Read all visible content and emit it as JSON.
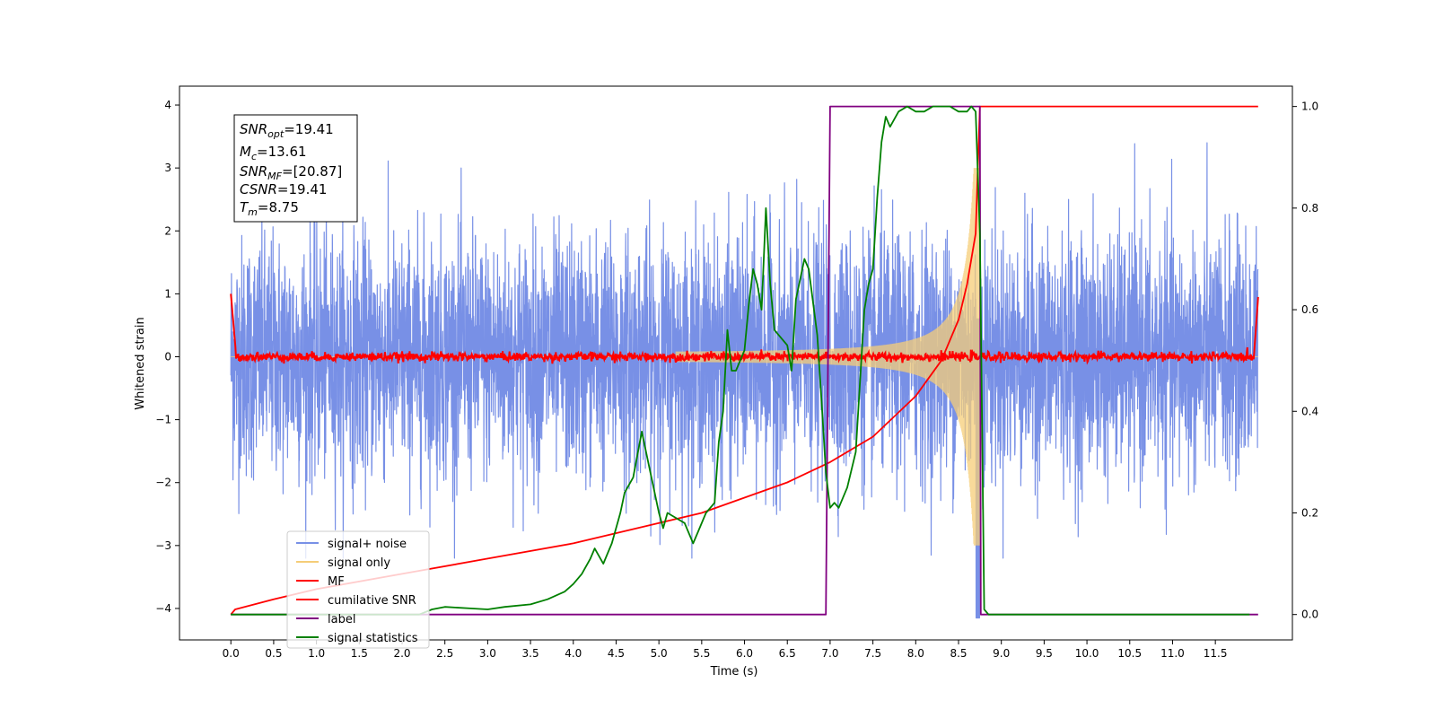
{
  "chart_data": {
    "type": "line",
    "xlabel": "Time (s)",
    "ylabel": "Whitened strain",
    "xlim": [
      -0.6,
      12.4
    ],
    "ylim": [
      -4.5,
      4.3
    ],
    "y2lim": [
      -0.05,
      1.04
    ],
    "grid": false,
    "legend_position": "lower-left",
    "x_ticks": [
      "0.0",
      "0.5",
      "1.0",
      "1.5",
      "2.0",
      "2.5",
      "3.0",
      "3.5",
      "4.0",
      "4.5",
      "5.0",
      "5.5",
      "6.0",
      "6.5",
      "7.0",
      "7.5",
      "8.0",
      "8.5",
      "9.0",
      "9.5",
      "10.0",
      "10.5",
      "11.0",
      "11.5"
    ],
    "y_ticks": [
      "4",
      "3",
      "2",
      "1",
      "0",
      "−1",
      "−2",
      "−3",
      "−4"
    ],
    "y2_ticks": [
      "1.0",
      "0.8",
      "0.6",
      "0.4",
      "0.2",
      "0.0"
    ],
    "annotation": {
      "lines": [
        {
          "base": "SNR",
          "sub": "opt",
          "rest": "=19.41"
        },
        {
          "base": "M",
          "sub": "c",
          "rest": "=13.61"
        },
        {
          "base": "SNR",
          "sub": "MF",
          "rest": "=[20.87]"
        },
        {
          "base": "CSNR",
          "sub": "",
          "rest": "=19.41"
        },
        {
          "base": "T",
          "sub": "m",
          "rest": "=8.75"
        }
      ]
    },
    "legend": [
      {
        "label": "signal+ noise",
        "color": "#7890e6"
      },
      {
        "label": "signal only",
        "color": "#f5cd78"
      },
      {
        "label": "MF",
        "color": "#ff0000"
      },
      {
        "label": "cumilative SNR",
        "color": "#ff0000"
      },
      {
        "label": "label",
        "color": "#800080"
      },
      {
        "label": "signal statistics",
        "color": "#008000"
      }
    ],
    "series": [
      {
        "name": "signal+ noise",
        "axis": "left",
        "color": "#7890e6",
        "description": "white noise, std ≈ 1, t 0–12 s"
      },
      {
        "name": "signal only",
        "axis": "left",
        "color": "#f5cd78",
        "description": "chirp, amplitude grows to ≈3 at t≈8.75 s"
      },
      {
        "name": "MF",
        "axis": "left",
        "color": "#ff0000",
        "description": "matched filter output near 0, peaks ≈1 at edges"
      },
      {
        "name": "cumilative SNR",
        "axis": "right",
        "color": "#ff0000",
        "x": [
          0.0,
          0.05,
          0.5,
          1.0,
          2.0,
          3.0,
          4.0,
          5.0,
          5.5,
          6.0,
          6.5,
          7.0,
          7.5,
          8.0,
          8.3,
          8.5,
          8.6,
          8.7,
          8.75,
          12.0
        ],
        "y": [
          0.0,
          0.01,
          0.03,
          0.05,
          0.08,
          0.11,
          0.14,
          0.18,
          0.2,
          0.23,
          0.26,
          0.3,
          0.35,
          0.43,
          0.5,
          0.58,
          0.65,
          0.75,
          1.0,
          1.0
        ]
      },
      {
        "name": "label",
        "axis": "right",
        "color": "#800080",
        "x": [
          0.0,
          6.95,
          7.0,
          8.75,
          8.76,
          12.0
        ],
        "y": [
          0.0,
          0.0,
          1.0,
          1.0,
          0.0,
          0.0
        ]
      },
      {
        "name": "signal statistics",
        "axis": "right",
        "color": "#008000",
        "x": [
          0.0,
          2.2,
          2.35,
          2.5,
          2.8,
          3.0,
          3.2,
          3.5,
          3.7,
          3.9,
          4.0,
          4.1,
          4.2,
          4.25,
          4.35,
          4.45,
          4.55,
          4.6,
          4.7,
          4.8,
          4.9,
          5.0,
          5.05,
          5.1,
          5.2,
          5.3,
          5.4,
          5.45,
          5.55,
          5.65,
          5.7,
          5.75,
          5.8,
          5.85,
          5.9,
          6.0,
          6.05,
          6.1,
          6.15,
          6.2,
          6.25,
          6.3,
          6.35,
          6.4,
          6.5,
          6.55,
          6.6,
          6.7,
          6.75,
          6.85,
          6.9,
          6.95,
          7.0,
          7.05,
          7.1,
          7.2,
          7.3,
          7.4,
          7.45,
          7.5,
          7.55,
          7.6,
          7.65,
          7.7,
          7.8,
          7.9,
          8.0,
          8.1,
          8.2,
          8.4,
          8.5,
          8.6,
          8.65,
          8.7,
          8.75,
          8.8,
          8.85,
          11.9
        ],
        "y": [
          0.0,
          0.0,
          0.01,
          0.015,
          0.012,
          0.01,
          0.015,
          0.02,
          0.03,
          0.045,
          0.06,
          0.08,
          0.11,
          0.13,
          0.1,
          0.14,
          0.2,
          0.24,
          0.27,
          0.36,
          0.28,
          0.2,
          0.17,
          0.2,
          0.19,
          0.18,
          0.14,
          0.16,
          0.2,
          0.22,
          0.34,
          0.4,
          0.56,
          0.48,
          0.48,
          0.52,
          0.61,
          0.68,
          0.65,
          0.6,
          0.8,
          0.65,
          0.56,
          0.55,
          0.53,
          0.48,
          0.62,
          0.7,
          0.68,
          0.55,
          0.42,
          0.28,
          0.21,
          0.22,
          0.21,
          0.25,
          0.32,
          0.6,
          0.65,
          0.68,
          0.82,
          0.93,
          0.98,
          0.96,
          0.99,
          1.0,
          0.99,
          0.99,
          1.0,
          1.0,
          0.99,
          0.99,
          1.0,
          0.99,
          0.75,
          0.01,
          0.0,
          0.0
        ]
      }
    ]
  }
}
